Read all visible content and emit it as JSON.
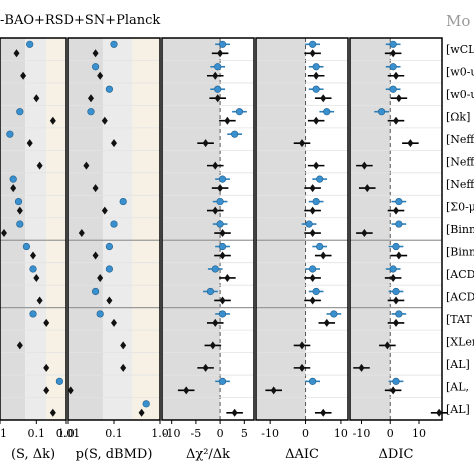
{
  "header": {
    "title": "-BAO+RSD+SN+Planck",
    "right_title": "Mo"
  },
  "chart_data": {
    "type": "scatter",
    "row_labels": [
      "[wCL",
      "[w0-u",
      "[w0-u",
      "[Ωk]",
      "[Neff",
      "[Neff",
      "[Neff",
      "[Σ0-μ",
      "[Binn",
      "[Binn",
      "[ACD",
      "[ACD",
      "[TAT",
      "[XLen",
      "[AL]",
      "[AL,",
      "[AL]"
    ],
    "group_breaks_after": [
      9,
      12
    ],
    "panels": [
      {
        "id": "p0",
        "xlabel": "(S, Δk)",
        "ticks": [
          "01",
          "0.1",
          "1.0"
        ],
        "x": [
          0.25,
          0.35,
          0.55,
          0.8,
          0.45,
          0.6,
          0.2,
          0.3,
          0.06,
          0.5,
          0.55,
          0.6,
          0.7,
          0.3,
          0.7,
          0.7,
          0.8
        ],
        "x_blue": [
          0.45,
          null,
          null,
          0.3,
          0.15,
          null,
          0.2,
          0.28,
          0.3,
          0.4,
          0.5,
          null,
          0.5,
          null,
          null,
          0.9,
          null
        ]
      },
      {
        "id": "p1",
        "xlabel": "p(S, dBMD)",
        "ticks": [
          "0.01",
          "0.1",
          "1.0"
        ],
        "x": [
          0.3,
          0.35,
          0.25,
          0.4,
          0.5,
          0.2,
          0.3,
          0.4,
          0.15,
          0.3,
          0.35,
          0.45,
          0.5,
          0.6,
          0.6,
          0.03,
          0.8
        ],
        "x_blue": [
          0.5,
          0.3,
          0.45,
          0.25,
          null,
          null,
          null,
          0.6,
          0.5,
          0.45,
          0.45,
          0.3,
          0.35,
          null,
          null,
          null,
          0.85
        ]
      },
      {
        "id": "p2",
        "xlabel": "Δχ²/Δk",
        "ticks": [
          "-10",
          "-5",
          "0",
          "5"
        ],
        "x": [
          0,
          -1,
          -0.5,
          1.5,
          -3,
          -1,
          0,
          -1,
          0.5,
          0.5,
          1.5,
          0.5,
          -1,
          -1.5,
          -3,
          -7,
          3
        ],
        "x_blue": [
          0.5,
          -0.5,
          -0.5,
          4,
          3,
          null,
          0.5,
          0,
          0,
          0.5,
          -1,
          -2,
          0.5,
          null,
          null,
          0.5,
          null
        ]
      },
      {
        "id": "p3",
        "xlabel": "ΔAIC",
        "ticks": [
          "-10",
          "0",
          "10"
        ],
        "x": [
          2,
          3,
          5,
          3,
          -1,
          3,
          2,
          2,
          2,
          5,
          2,
          2,
          6,
          -1,
          -1,
          -9,
          5
        ],
        "x_blue": [
          2,
          3,
          3,
          6,
          null,
          null,
          4,
          3,
          1,
          4,
          2,
          3,
          8,
          null,
          null,
          2,
          null
        ]
      },
      {
        "id": "p4",
        "xlabel": "ΔDIC",
        "ticks": [
          "-10",
          "0",
          "10"
        ],
        "x": [
          1,
          2,
          3,
          2,
          7,
          -9,
          -8,
          2,
          -9,
          3,
          1,
          2,
          2,
          -1,
          -10,
          1,
          17
        ],
        "x_blue": [
          1,
          1,
          1,
          -3,
          null,
          null,
          null,
          3,
          3,
          2,
          1,
          2,
          3,
          null,
          null,
          2,
          null
        ]
      }
    ]
  }
}
